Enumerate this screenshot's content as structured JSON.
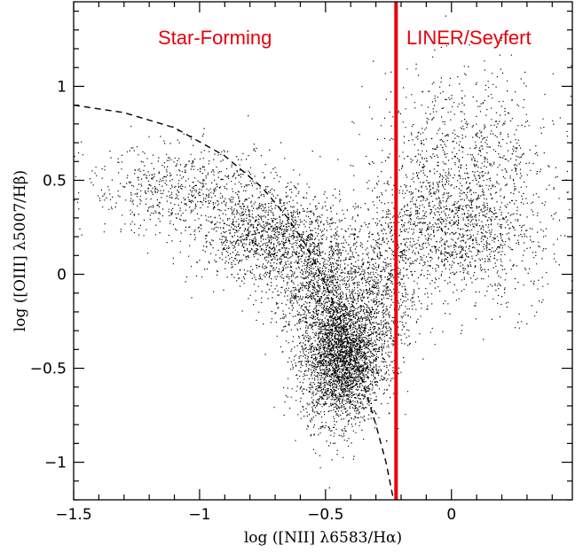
{
  "chart_data": {
    "type": "scatter",
    "title": "",
    "xlabel": "log ([NII] λ6583/Hα)",
    "ylabel": "log ([OIII] λ5007/Hβ)",
    "xlim": [
      -1.5,
      0.48
    ],
    "ylim": [
      -1.2,
      1.45
    ],
    "x_ticks": [
      -1.5,
      -1,
      -0.5,
      0
    ],
    "x_tick_labels": [
      "−1.5",
      "−1",
      "−0.5",
      "0"
    ],
    "y_ticks": [
      -1,
      -0.5,
      0,
      0.5,
      1
    ],
    "y_tick_labels": [
      "−1",
      "−0.5",
      "0",
      "0.5",
      "1"
    ],
    "grid": false,
    "annotations": [
      {
        "text": "Star-Forming",
        "color": "#e8000b"
      },
      {
        "text": "LINER/Seyfert",
        "color": "#e8000b"
      }
    ],
    "divider_line": {
      "x": -0.22,
      "color": "#e8000b"
    },
    "dashed_curve": {
      "x": [
        -1.5,
        -1.3,
        -1.1,
        -0.9,
        -0.75,
        -0.65,
        -0.58,
        -0.5,
        -0.45,
        -0.4,
        -0.35,
        -0.3,
        -0.26,
        -0.23
      ],
      "y": [
        0.9,
        0.86,
        0.78,
        0.63,
        0.46,
        0.3,
        0.16,
        -0.05,
        -0.21,
        -0.4,
        -0.58,
        -0.8,
        -1.0,
        -1.2
      ]
    },
    "series": [
      {
        "point_color": "#000000",
        "density_clusters": [
          {
            "x_center": -0.44,
            "y_center": -0.45,
            "x_spread": 0.08,
            "y_spread": 0.17,
            "weight": 0.34
          },
          {
            "x_center": -0.72,
            "y_center": 0.2,
            "x_spread": 0.14,
            "y_spread": 0.12,
            "weight": 0.14
          },
          {
            "x_center": -1.05,
            "y_center": 0.45,
            "x_spread": 0.2,
            "y_spread": 0.12,
            "weight": 0.08
          },
          {
            "x_center": -0.52,
            "y_center": -0.05,
            "x_spread": 0.1,
            "y_spread": 0.15,
            "weight": 0.12
          },
          {
            "x_center": -0.28,
            "y_center": -0.1,
            "x_spread": 0.07,
            "y_spread": 0.2,
            "weight": 0.08
          },
          {
            "x_center": -0.05,
            "y_center": 0.25,
            "x_spread": 0.14,
            "y_spread": 0.18,
            "weight": 0.12
          },
          {
            "x_center": 0.05,
            "y_center": 0.65,
            "x_spread": 0.18,
            "y_spread": 0.22,
            "weight": 0.08
          },
          {
            "x_center": 0.2,
            "y_center": 0.2,
            "x_spread": 0.12,
            "y_spread": 0.2,
            "weight": 0.04
          }
        ]
      }
    ]
  }
}
